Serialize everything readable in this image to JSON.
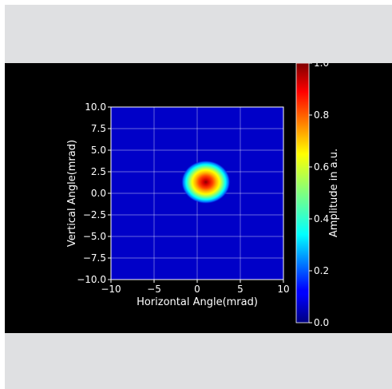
{
  "chart_data": {
    "type": "heatmap",
    "title": "",
    "xlabel": "Horizontal Angle(mrad)",
    "ylabel": "Vertical Angle(mrad)",
    "xlim": [
      -10,
      10
    ],
    "ylim": [
      -10,
      10
    ],
    "x_ticks": [
      "−10",
      "−5",
      "0",
      "5",
      "10"
    ],
    "y_ticks": [
      "10.0",
      "7.5",
      "5.0",
      "2.5",
      "0.0",
      "−2.5",
      "−5.0",
      "−7.5",
      "−10.0"
    ],
    "grid": true,
    "colormap": "jet",
    "peak": {
      "x": 1.0,
      "y": 1.3,
      "value": 1.0
    },
    "spot_width_mrad": {
      "x": 1.3,
      "y": 1.1
    },
    "background_value": 0.02,
    "colorbar": {
      "label": "Amplitude in a.u.",
      "range": [
        0.0,
        1.0
      ],
      "ticks": [
        "0.0",
        "0.2",
        "0.4",
        "0.6",
        "0.8",
        "1.0"
      ]
    }
  },
  "colors": {
    "figure_background": "#000000",
    "page_band": "#dfe0e2",
    "axis_and_grid": "#ffffff"
  }
}
